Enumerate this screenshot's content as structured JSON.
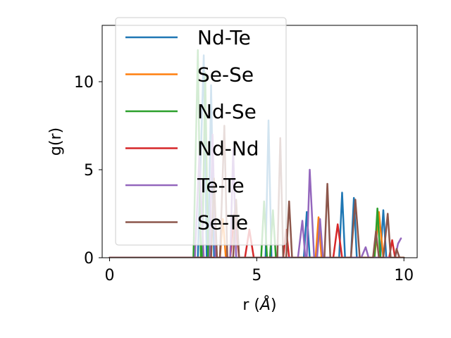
{
  "chart_data": {
    "type": "line",
    "title": "",
    "xlabel": "r (",
    "xlabel_unit": "Å",
    "xlabel_close": ")",
    "ylabel": "g(r)",
    "xlim": [
      -0.25,
      10.45
    ],
    "ylim": [
      0,
      13.2
    ],
    "xticks": [
      0,
      5,
      10
    ],
    "xtick_labels": [
      "0",
      "5",
      "10"
    ],
    "yticks": [
      0,
      5,
      10
    ],
    "ytick_labels": [
      "0",
      "5",
      "10"
    ],
    "grid": false,
    "legend_position": "upper-left",
    "series": [
      {
        "name": "Nd-Te",
        "color": "#1f77b4",
        "points": [
          [
            0,
            0
          ],
          [
            3.0,
            0
          ],
          [
            3.2,
            11.5
          ],
          [
            3.3,
            0
          ],
          [
            3.35,
            0
          ],
          [
            3.45,
            9.8
          ],
          [
            3.55,
            0
          ],
          [
            5.3,
            0
          ],
          [
            5.4,
            7.8
          ],
          [
            5.5,
            0
          ],
          [
            6.6,
            0
          ],
          [
            6.7,
            2.6
          ],
          [
            6.8,
            0
          ],
          [
            7.8,
            0
          ],
          [
            7.9,
            3.7
          ],
          [
            8.0,
            0
          ],
          [
            8.2,
            0
          ],
          [
            8.3,
            3.4
          ],
          [
            8.4,
            0
          ],
          [
            9.2,
            0
          ],
          [
            9.3,
            2.7
          ],
          [
            9.4,
            0
          ],
          [
            10,
            0
          ]
        ]
      },
      {
        "name": "Se-Se",
        "color": "#ff7f0e",
        "points": [
          [
            0,
            0
          ],
          [
            3.75,
            0
          ],
          [
            3.85,
            2.2
          ],
          [
            3.95,
            0
          ],
          [
            7.0,
            0
          ],
          [
            7.1,
            2.3
          ],
          [
            7.2,
            0
          ],
          [
            9.0,
            0
          ],
          [
            9.15,
            2.6
          ],
          [
            9.3,
            0
          ],
          [
            10,
            0
          ]
        ]
      },
      {
        "name": "Nd-Se",
        "color": "#2ca02c",
        "points": [
          [
            0,
            0
          ],
          [
            2.85,
            0
          ],
          [
            3.0,
            11.8
          ],
          [
            3.1,
            0
          ],
          [
            3.15,
            0
          ],
          [
            3.25,
            10.5
          ],
          [
            3.35,
            0
          ],
          [
            5.15,
            0
          ],
          [
            5.25,
            3.2
          ],
          [
            5.35,
            0
          ],
          [
            5.45,
            0
          ],
          [
            5.55,
            2.7
          ],
          [
            5.65,
            0
          ],
          [
            9.0,
            0
          ],
          [
            9.1,
            2.8
          ],
          [
            9.2,
            0
          ],
          [
            10,
            0
          ]
        ]
      },
      {
        "name": "Nd-Nd",
        "color": "#d62728",
        "points": [
          [
            0,
            0
          ],
          [
            4.1,
            0
          ],
          [
            4.25,
            2.6
          ],
          [
            4.4,
            0
          ],
          [
            4.6,
            0
          ],
          [
            4.75,
            1.6
          ],
          [
            4.9,
            0
          ],
          [
            5.9,
            0
          ],
          [
            6.0,
            1.6
          ],
          [
            6.1,
            0
          ],
          [
            7.6,
            0
          ],
          [
            7.75,
            1.9
          ],
          [
            7.9,
            0
          ],
          [
            9.5,
            0
          ],
          [
            9.6,
            1.0
          ],
          [
            9.7,
            0
          ],
          [
            10,
            0
          ]
        ]
      },
      {
        "name": "Te-Te",
        "color": "#9467bd",
        "points": [
          [
            0,
            0
          ],
          [
            2.9,
            0
          ],
          [
            3.05,
            5.8
          ],
          [
            3.2,
            0
          ],
          [
            3.4,
            0
          ],
          [
            3.5,
            7.0
          ],
          [
            3.6,
            0
          ],
          [
            4.1,
            0
          ],
          [
            4.2,
            6.2
          ],
          [
            4.3,
            0
          ],
          [
            6.4,
            0
          ],
          [
            6.55,
            2.1
          ],
          [
            6.65,
            0
          ],
          [
            6.7,
            0
          ],
          [
            6.8,
            5.0
          ],
          [
            6.95,
            0
          ],
          [
            7.05,
            0
          ],
          [
            7.15,
            2.2
          ],
          [
            7.25,
            0
          ],
          [
            8.55,
            0
          ],
          [
            8.7,
            0.6
          ],
          [
            8.8,
            0
          ],
          [
            9.7,
            0
          ],
          [
            9.8,
            0.8
          ],
          [
            9.9,
            1.1
          ]
        ]
      },
      {
        "name": "Se-Te",
        "color": "#8c564b",
        "points": [
          [
            0,
            0
          ],
          [
            3.45,
            0
          ],
          [
            3.55,
            4.5
          ],
          [
            3.65,
            0
          ],
          [
            3.75,
            0
          ],
          [
            3.9,
            7.5
          ],
          [
            4.0,
            0
          ],
          [
            4.2,
            0
          ],
          [
            4.3,
            3.3
          ],
          [
            4.4,
            0
          ],
          [
            5.7,
            0
          ],
          [
            5.8,
            6.8
          ],
          [
            5.9,
            0
          ],
          [
            6.0,
            0
          ],
          [
            6.1,
            3.2
          ],
          [
            6.2,
            0
          ],
          [
            7.3,
            0
          ],
          [
            7.4,
            4.2
          ],
          [
            7.5,
            0
          ],
          [
            8.2,
            0
          ],
          [
            8.35,
            3.3
          ],
          [
            8.5,
            0
          ],
          [
            8.95,
            0
          ],
          [
            9.05,
            1.5
          ],
          [
            9.15,
            0
          ],
          [
            9.3,
            0
          ],
          [
            9.45,
            2.5
          ],
          [
            9.55,
            0
          ],
          [
            9.7,
            0
          ],
          [
            9.75,
            0.5
          ],
          [
            9.85,
            0
          ],
          [
            10,
            0
          ]
        ]
      }
    ]
  }
}
